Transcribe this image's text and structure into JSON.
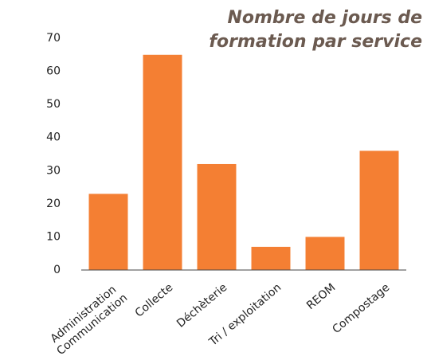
{
  "chart_data": {
    "type": "bar",
    "title": "Nombre de jours de formation par service",
    "categories": [
      "Administration\nCommunication",
      "Collecte",
      "Déchèterie",
      "Tri / exploitation",
      "REOM",
      "Compostage"
    ],
    "values": [
      23,
      65,
      32,
      7,
      10,
      36
    ],
    "color": "#f47f33",
    "ylim": [
      0,
      70
    ],
    "yticks": [
      0,
      10,
      20,
      30,
      40,
      50,
      60,
      70
    ],
    "grid": false
  }
}
